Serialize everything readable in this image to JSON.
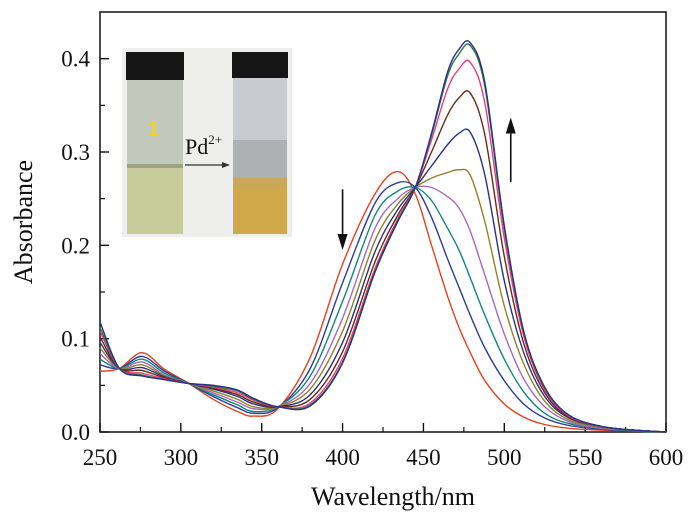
{
  "chart_data": {
    "type": "line",
    "title": "",
    "xlabel": "Wavelength/nm",
    "ylabel": "Absorbance",
    "xlim": [
      250,
      600
    ],
    "ylim": [
      0.0,
      0.45
    ],
    "xticks": [
      250,
      300,
      350,
      400,
      450,
      500,
      550,
      600
    ],
    "xtick_labels": [
      "250",
      "300",
      "350",
      "400",
      "450",
      "500",
      "550",
      "600"
    ],
    "yticks": [
      0.0,
      0.1,
      0.2,
      0.3,
      0.4
    ],
    "ytick_labels": [
      "0.0",
      "0.1",
      "0.2",
      "0.3",
      "0.4"
    ],
    "grid": false,
    "legend": "none",
    "x": [
      250,
      262,
      276,
      290,
      305,
      320,
      335,
      345,
      360,
      380,
      400,
      420,
      434,
      445,
      455,
      465,
      472,
      479,
      488,
      500,
      512,
      525,
      540,
      560,
      580,
      600
    ],
    "series": [
      {
        "name": "s0",
        "color": "#e8401c",
        "values": [
          0.065,
          0.068,
          0.085,
          0.067,
          0.052,
          0.035,
          0.022,
          0.017,
          0.025,
          0.08,
          0.18,
          0.255,
          0.279,
          0.255,
          0.2,
          0.145,
          0.112,
          0.085,
          0.055,
          0.03,
          0.016,
          0.008,
          0.004,
          0.002,
          0.001,
          0.0
        ]
      },
      {
        "name": "s1",
        "color": "#2b3d9a",
        "values": [
          0.072,
          0.068,
          0.081,
          0.065,
          0.052,
          0.038,
          0.026,
          0.02,
          0.026,
          0.068,
          0.16,
          0.245,
          0.267,
          0.262,
          0.23,
          0.185,
          0.155,
          0.125,
          0.09,
          0.055,
          0.03,
          0.015,
          0.007,
          0.003,
          0.001,
          0.0
        ]
      },
      {
        "name": "s2",
        "color": "#13877a",
        "values": [
          0.078,
          0.068,
          0.078,
          0.063,
          0.052,
          0.04,
          0.029,
          0.022,
          0.027,
          0.06,
          0.14,
          0.232,
          0.258,
          0.262,
          0.248,
          0.218,
          0.195,
          0.165,
          0.125,
          0.078,
          0.043,
          0.02,
          0.009,
          0.004,
          0.001,
          0.0
        ]
      },
      {
        "name": "s3",
        "color": "#a668bd",
        "values": [
          0.084,
          0.068,
          0.075,
          0.061,
          0.052,
          0.042,
          0.032,
          0.025,
          0.027,
          0.052,
          0.122,
          0.218,
          0.25,
          0.262,
          0.262,
          0.252,
          0.24,
          0.215,
          0.168,
          0.105,
          0.057,
          0.027,
          0.011,
          0.004,
          0.002,
          0.0
        ]
      },
      {
        "name": "s4",
        "color": "#8d8228",
        "values": [
          0.09,
          0.068,
          0.072,
          0.06,
          0.052,
          0.044,
          0.035,
          0.027,
          0.027,
          0.046,
          0.108,
          0.205,
          0.244,
          0.262,
          0.272,
          0.278,
          0.281,
          0.275,
          0.225,
          0.135,
          0.073,
          0.033,
          0.013,
          0.005,
          0.002,
          0.0
        ]
      },
      {
        "name": "s5",
        "color": "#2a3283",
        "values": [
          0.096,
          0.068,
          0.069,
          0.059,
          0.052,
          0.046,
          0.038,
          0.03,
          0.027,
          0.04,
          0.096,
          0.193,
          0.238,
          0.262,
          0.285,
          0.308,
          0.32,
          0.321,
          0.275,
          0.162,
          0.085,
          0.038,
          0.015,
          0.006,
          0.002,
          0.0
        ]
      },
      {
        "name": "s6",
        "color": "#6a2a1a",
        "values": [
          0.102,
          0.068,
          0.066,
          0.058,
          0.052,
          0.047,
          0.04,
          0.032,
          0.027,
          0.035,
          0.086,
          0.182,
          0.232,
          0.262,
          0.3,
          0.34,
          0.358,
          0.363,
          0.318,
          0.188,
          0.095,
          0.042,
          0.016,
          0.006,
          0.002,
          0.0
        ]
      },
      {
        "name": "s7",
        "color": "#e8407a",
        "values": [
          0.108,
          0.068,
          0.063,
          0.057,
          0.052,
          0.048,
          0.042,
          0.034,
          0.027,
          0.031,
          0.079,
          0.175,
          0.228,
          0.262,
          0.313,
          0.368,
          0.389,
          0.396,
          0.352,
          0.208,
          0.103,
          0.045,
          0.017,
          0.006,
          0.002,
          0.0
        ]
      },
      {
        "name": "s8",
        "color": "#2f7a3a",
        "values": [
          0.112,
          0.068,
          0.061,
          0.056,
          0.052,
          0.049,
          0.044,
          0.035,
          0.027,
          0.029,
          0.075,
          0.172,
          0.226,
          0.262,
          0.318,
          0.382,
          0.405,
          0.414,
          0.37,
          0.218,
          0.107,
          0.047,
          0.018,
          0.006,
          0.002,
          0.0
        ]
      },
      {
        "name": "s9",
        "color": "#2b2f8f",
        "values": [
          0.118,
          0.068,
          0.06,
          0.056,
          0.052,
          0.05,
          0.045,
          0.036,
          0.027,
          0.028,
          0.074,
          0.171,
          0.225,
          0.262,
          0.32,
          0.386,
          0.41,
          0.417,
          0.374,
          0.221,
          0.108,
          0.048,
          0.018,
          0.006,
          0.002,
          0.0
        ]
      }
    ],
    "annotations": [
      {
        "type": "arrow",
        "direction": "down",
        "x": 400,
        "y_from": 0.26,
        "y_to": 0.195
      },
      {
        "type": "arrow",
        "direction": "up",
        "x": 504,
        "y_from": 0.268,
        "y_to": 0.337
      }
    ],
    "inset": {
      "label_vial": "1",
      "reagent_label": "Pd",
      "reagent_charge": "2+"
    }
  }
}
